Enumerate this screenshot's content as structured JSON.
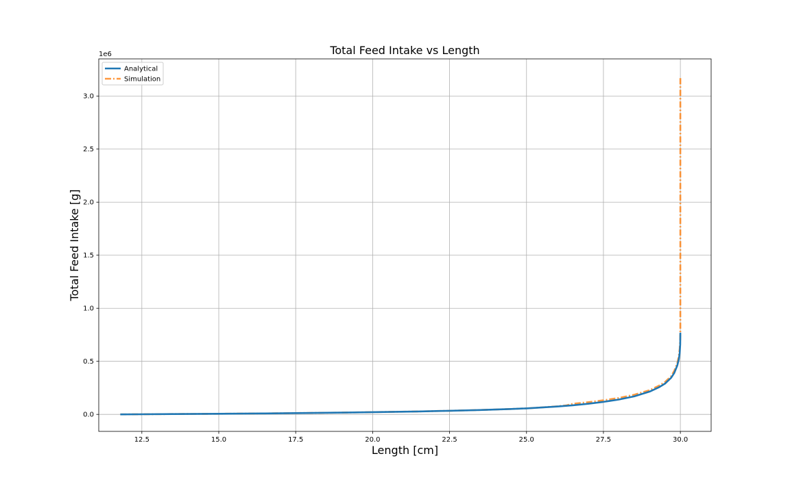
{
  "chart_data": {
    "type": "line",
    "title": "Total Feed Intake vs Length",
    "xlabel": "Length [cm]",
    "ylabel": "Total Feed Intake [g]",
    "y_offset_label": "1e6",
    "xlim": [
      11.1,
      31.0
    ],
    "ylim": [
      -0.16,
      3.35
    ],
    "x_ticks": [
      12.5,
      15.0,
      17.5,
      20.0,
      22.5,
      25.0,
      27.5,
      30.0
    ],
    "x_tick_labels": [
      "12.5",
      "15.0",
      "17.5",
      "20.0",
      "22.5",
      "25.0",
      "27.5",
      "30.0"
    ],
    "y_ticks": [
      0.0,
      0.5,
      1.0,
      1.5,
      2.0,
      2.5,
      3.0
    ],
    "y_tick_labels": [
      "0.0",
      "0.5",
      "1.0",
      "1.5",
      "2.0",
      "2.5",
      "3.0"
    ],
    "grid": true,
    "legend_position": "top-left",
    "series": [
      {
        "name": "Analytical",
        "color": "#1f77b4",
        "style": "solid",
        "x": [
          11.8,
          12.5,
          13.5,
          15.0,
          16.5,
          17.5,
          19.0,
          20.0,
          21.5,
          22.5,
          23.5,
          24.5,
          25.0,
          25.5,
          26.0,
          26.5,
          27.0,
          27.5,
          28.0,
          28.5,
          29.0,
          29.3,
          29.5,
          29.7,
          29.8,
          29.9,
          29.95,
          29.98,
          29.995,
          30.0
        ],
        "y": [
          0.0,
          0.001,
          0.003,
          0.006,
          0.009,
          0.012,
          0.017,
          0.021,
          0.028,
          0.034,
          0.041,
          0.051,
          0.057,
          0.065,
          0.074,
          0.086,
          0.1,
          0.118,
          0.14,
          0.17,
          0.215,
          0.255,
          0.29,
          0.345,
          0.39,
          0.46,
          0.52,
          0.58,
          0.66,
          0.77
        ]
      },
      {
        "name": "Simulation",
        "color": "#ff7f0e",
        "style": "dash-dot",
        "x": [
          11.8,
          12.5,
          13.5,
          15.0,
          16.5,
          17.5,
          19.0,
          20.0,
          21.5,
          22.5,
          23.5,
          24.5,
          25.0,
          25.5,
          26.0,
          26.3,
          26.5,
          27.0,
          27.5,
          28.0,
          28.5,
          29.0,
          29.3,
          29.5,
          29.7,
          29.8,
          29.9,
          29.95,
          29.98,
          29.995,
          30.0,
          30.0
        ],
        "y": [
          0.0,
          0.001,
          0.003,
          0.006,
          0.009,
          0.012,
          0.017,
          0.021,
          0.028,
          0.034,
          0.041,
          0.051,
          0.057,
          0.066,
          0.076,
          0.085,
          0.1,
          0.115,
          0.133,
          0.155,
          0.185,
          0.228,
          0.27,
          0.305,
          0.36,
          0.41,
          0.48,
          0.55,
          0.62,
          0.7,
          0.8,
          3.17
        ]
      }
    ]
  }
}
